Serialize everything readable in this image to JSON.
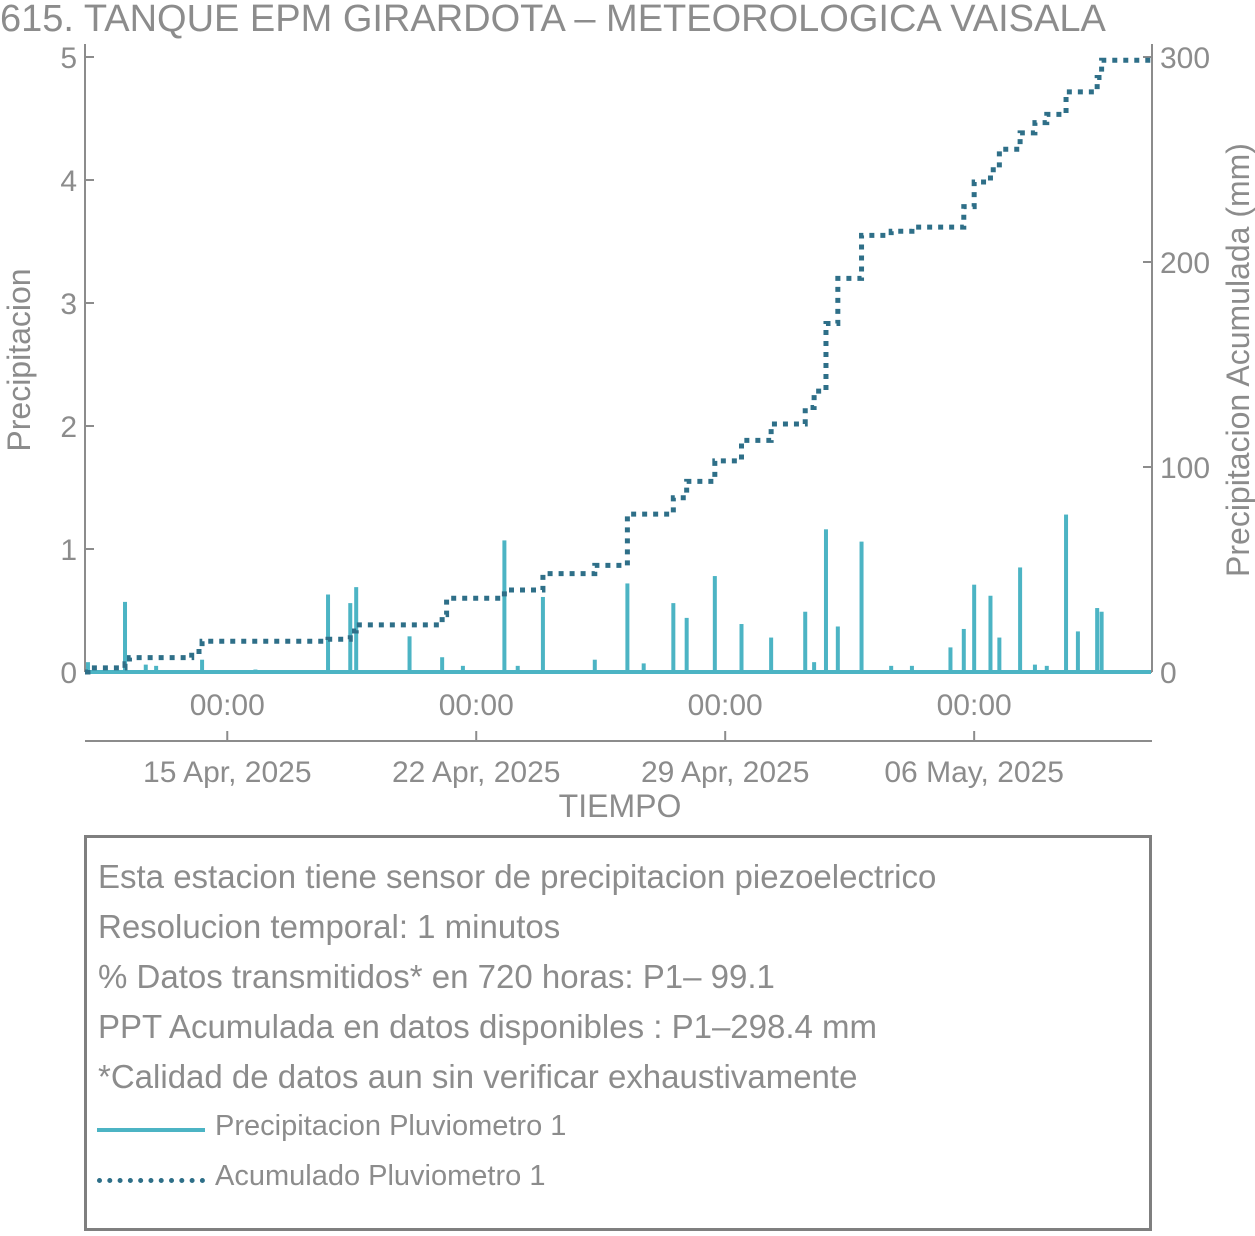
{
  "chart_data": {
    "type": "bar",
    "title": "615. TANQUE EPM GIRARDOTA – METEOROLOGICA VAISALA",
    "xlabel": "TIEMPO",
    "ylabel": "Precipitacion",
    "y2label": "Precipitacion Acumulada (mm)",
    "x_range": [
      "2025-04-11 00:00",
      "2025-05-11 00:00"
    ],
    "ylim": [
      0,
      5
    ],
    "y2lim": [
      0,
      300
    ],
    "y_ticks": [
      0,
      1,
      2,
      3,
      4,
      5
    ],
    "y2_ticks": [
      0,
      100,
      200,
      300
    ],
    "x_ticks": [
      {
        "date": "2025-04-15 00:00",
        "time": "00:00",
        "date_label": "15 Apr, 2025"
      },
      {
        "date": "2025-04-22 00:00",
        "time": "00:00",
        "date_label": "22 Apr, 2025"
      },
      {
        "date": "2025-04-29 00:00",
        "time": "00:00",
        "date_label": "29 Apr, 2025"
      },
      {
        "date": "2025-05-06 00:00",
        "time": "00:00",
        "date_label": "06 May, 2025"
      }
    ],
    "grid": false,
    "legend_position": "bottom",
    "series": [
      {
        "name": "Precipitacion Pluviometro 1",
        "type": "bar",
        "axis": "left",
        "color": "#4cb4c4",
        "points": [
          [
            "2025-04-11 02:00",
            0.08
          ],
          [
            "2025-04-12 03:00",
            0.57
          ],
          [
            "2025-04-12 17:00",
            0.06
          ],
          [
            "2025-04-13 00:00",
            0.05
          ],
          [
            "2025-04-14 07:00",
            0.1
          ],
          [
            "2025-04-15 19:00",
            0.02
          ],
          [
            "2025-04-17 20:00",
            0.63
          ],
          [
            "2025-04-18 11:00",
            0.56
          ],
          [
            "2025-04-18 15:00",
            0.69
          ],
          [
            "2025-04-20 03:00",
            0.29
          ],
          [
            "2025-04-21 01:00",
            0.12
          ],
          [
            "2025-04-21 15:00",
            0.05
          ],
          [
            "2025-04-22 19:00",
            1.07
          ],
          [
            "2025-04-23 04:00",
            0.05
          ],
          [
            "2025-04-23 21:00",
            0.61
          ],
          [
            "2025-04-25 08:00",
            0.1
          ],
          [
            "2025-04-26 06:00",
            0.72
          ],
          [
            "2025-04-26 17:00",
            0.07
          ],
          [
            "2025-04-27 13:00",
            0.56
          ],
          [
            "2025-04-27 22:00",
            0.44
          ],
          [
            "2025-04-28 17:00",
            0.78
          ],
          [
            "2025-04-29 11:00",
            0.39
          ],
          [
            "2025-04-30 07:00",
            0.28
          ],
          [
            "2025-05-01 06:00",
            0.49
          ],
          [
            "2025-05-01 12:00",
            0.08
          ],
          [
            "2025-05-01 20:00",
            1.16
          ],
          [
            "2025-05-02 04:00",
            0.37
          ],
          [
            "2025-05-02 20:00",
            1.06
          ],
          [
            "2025-05-03 16:00",
            0.05
          ],
          [
            "2025-05-04 06:00",
            0.05
          ],
          [
            "2025-05-05 08:00",
            0.2
          ],
          [
            "2025-05-05 17:00",
            0.35
          ],
          [
            "2025-05-06 00:00",
            0.71
          ],
          [
            "2025-05-06 11:00",
            0.62
          ],
          [
            "2025-05-06 17:00",
            0.28
          ],
          [
            "2025-05-07 07:00",
            0.85
          ],
          [
            "2025-05-07 17:00",
            0.06
          ],
          [
            "2025-05-08 01:00",
            0.05
          ],
          [
            "2025-05-08 14:00",
            1.28
          ],
          [
            "2025-05-08 22:00",
            0.33
          ],
          [
            "2025-05-09 11:00",
            0.52
          ],
          [
            "2025-05-09 14:00",
            0.49
          ]
        ]
      },
      {
        "name": "Acumulado Pluviometro 1",
        "type": "line",
        "axis": "right",
        "color": "#2e6f88",
        "points": [
          [
            "2025-04-11 00:00",
            0
          ],
          [
            "2025-04-11 02:00",
            2
          ],
          [
            "2025-04-12 03:00",
            4
          ],
          [
            "2025-04-12 06:00",
            7
          ],
          [
            "2025-04-14 00:00",
            10
          ],
          [
            "2025-04-14 07:00",
            15
          ],
          [
            "2025-04-17 20:00",
            16
          ],
          [
            "2025-04-18 11:00",
            20
          ],
          [
            "2025-04-18 15:00",
            23
          ],
          [
            "2025-04-20 03:00",
            23
          ],
          [
            "2025-04-21 01:00",
            28
          ],
          [
            "2025-04-21 04:00",
            36
          ],
          [
            "2025-04-22 19:00",
            40
          ],
          [
            "2025-04-23 21:00",
            48
          ],
          [
            "2025-04-25 08:00",
            52
          ],
          [
            "2025-04-26 06:00",
            77
          ],
          [
            "2025-04-27 13:00",
            85
          ],
          [
            "2025-04-27 22:00",
            93
          ],
          [
            "2025-04-28 17:00",
            103
          ],
          [
            "2025-04-29 11:00",
            113
          ],
          [
            "2025-04-30 07:00",
            121
          ],
          [
            "2025-05-01 06:00",
            129
          ],
          [
            "2025-05-01 12:00",
            137
          ],
          [
            "2025-05-01 20:00",
            170
          ],
          [
            "2025-05-02 04:00",
            192
          ],
          [
            "2025-05-02 20:00",
            213
          ],
          [
            "2025-05-03 16:00",
            215
          ],
          [
            "2025-05-04 06:00",
            217
          ],
          [
            "2025-05-05 08:00",
            217
          ],
          [
            "2025-05-05 17:00",
            227
          ],
          [
            "2025-05-06 00:00",
            239
          ],
          [
            "2025-05-06 11:00",
            245
          ],
          [
            "2025-05-06 17:00",
            255
          ],
          [
            "2025-05-07 07:00",
            263
          ],
          [
            "2025-05-07 17:00",
            268
          ],
          [
            "2025-05-08 01:00",
            272
          ],
          [
            "2025-05-08 14:00",
            283
          ],
          [
            "2025-05-09 11:00",
            290
          ],
          [
            "2025-05-09 14:00",
            298.4
          ],
          [
            "2025-05-11 00:00",
            298.4
          ]
        ]
      }
    ]
  },
  "info_box": {
    "lines": [
      "Esta estacion tiene sensor de precipitacion piezoelectrico",
      "Resolucion temporal: 1 minutos",
      "% Datos transmitidos* en 720 horas: P1– 99.1",
      "PPT Acumulada en datos disponibles : P1–298.4 mm",
      "*Calidad de datos aun sin verificar exhaustivamente"
    ],
    "legend": [
      {
        "label": "Precipitacion Pluviometro 1",
        "style": "solid",
        "color": "#4cb4c4"
      },
      {
        "label": "Acumulado Pluviometro 1",
        "style": "dotted",
        "color": "#2e6f88"
      }
    ]
  }
}
